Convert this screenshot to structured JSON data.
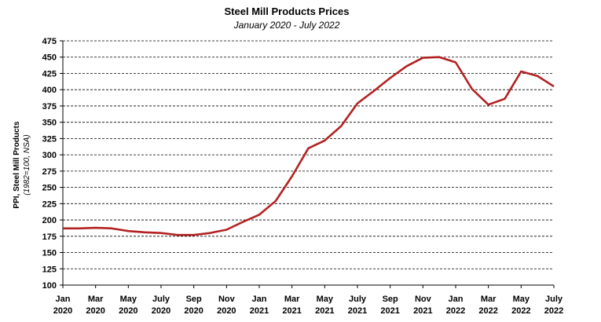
{
  "chart_data": {
    "type": "line",
    "title": "Steel Mill Products Prices",
    "subtitle": "January 2020 - July 2022",
    "ylabel": "PPI, Steel Mill Products",
    "ylabel_note": "(1982=100, NSA)",
    "xlabel": "",
    "ylim": [
      100,
      475
    ],
    "yticks": [
      100,
      125,
      150,
      175,
      200,
      225,
      250,
      275,
      300,
      325,
      350,
      375,
      400,
      425,
      450,
      475
    ],
    "grid": "horizontal-dashed",
    "line_color": "#b22222",
    "x_tick_labels": [
      {
        "index": 0,
        "month": "Jan",
        "year": "2020"
      },
      {
        "index": 2,
        "month": "Mar",
        "year": "2020"
      },
      {
        "index": 4,
        "month": "May",
        "year": "2020"
      },
      {
        "index": 6,
        "month": "July",
        "year": "2020"
      },
      {
        "index": 8,
        "month": "Sep",
        "year": "2020"
      },
      {
        "index": 10,
        "month": "Nov",
        "year": "2020"
      },
      {
        "index": 12,
        "month": "Jan",
        "year": "2021"
      },
      {
        "index": 14,
        "month": "Mar",
        "year": "2021"
      },
      {
        "index": 16,
        "month": "May",
        "year": "2021"
      },
      {
        "index": 18,
        "month": "July",
        "year": "2021"
      },
      {
        "index": 20,
        "month": "Sep",
        "year": "2021"
      },
      {
        "index": 22,
        "month": "Nov",
        "year": "2021"
      },
      {
        "index": 24,
        "month": "Jan",
        "year": "2022"
      },
      {
        "index": 26,
        "month": "Mar",
        "year": "2022"
      },
      {
        "index": 28,
        "month": "May",
        "year": "2022"
      },
      {
        "index": 30,
        "month": "July",
        "year": "2022"
      }
    ],
    "series": [
      {
        "values": [
          187,
          187,
          188,
          187,
          183,
          181,
          180,
          177,
          177,
          180,
          185,
          197,
          208,
          229,
          267,
          310,
          322,
          344,
          379,
          398,
          418,
          436,
          449,
          450,
          442,
          401,
          377,
          386,
          428,
          421,
          405
        ]
      }
    ]
  }
}
